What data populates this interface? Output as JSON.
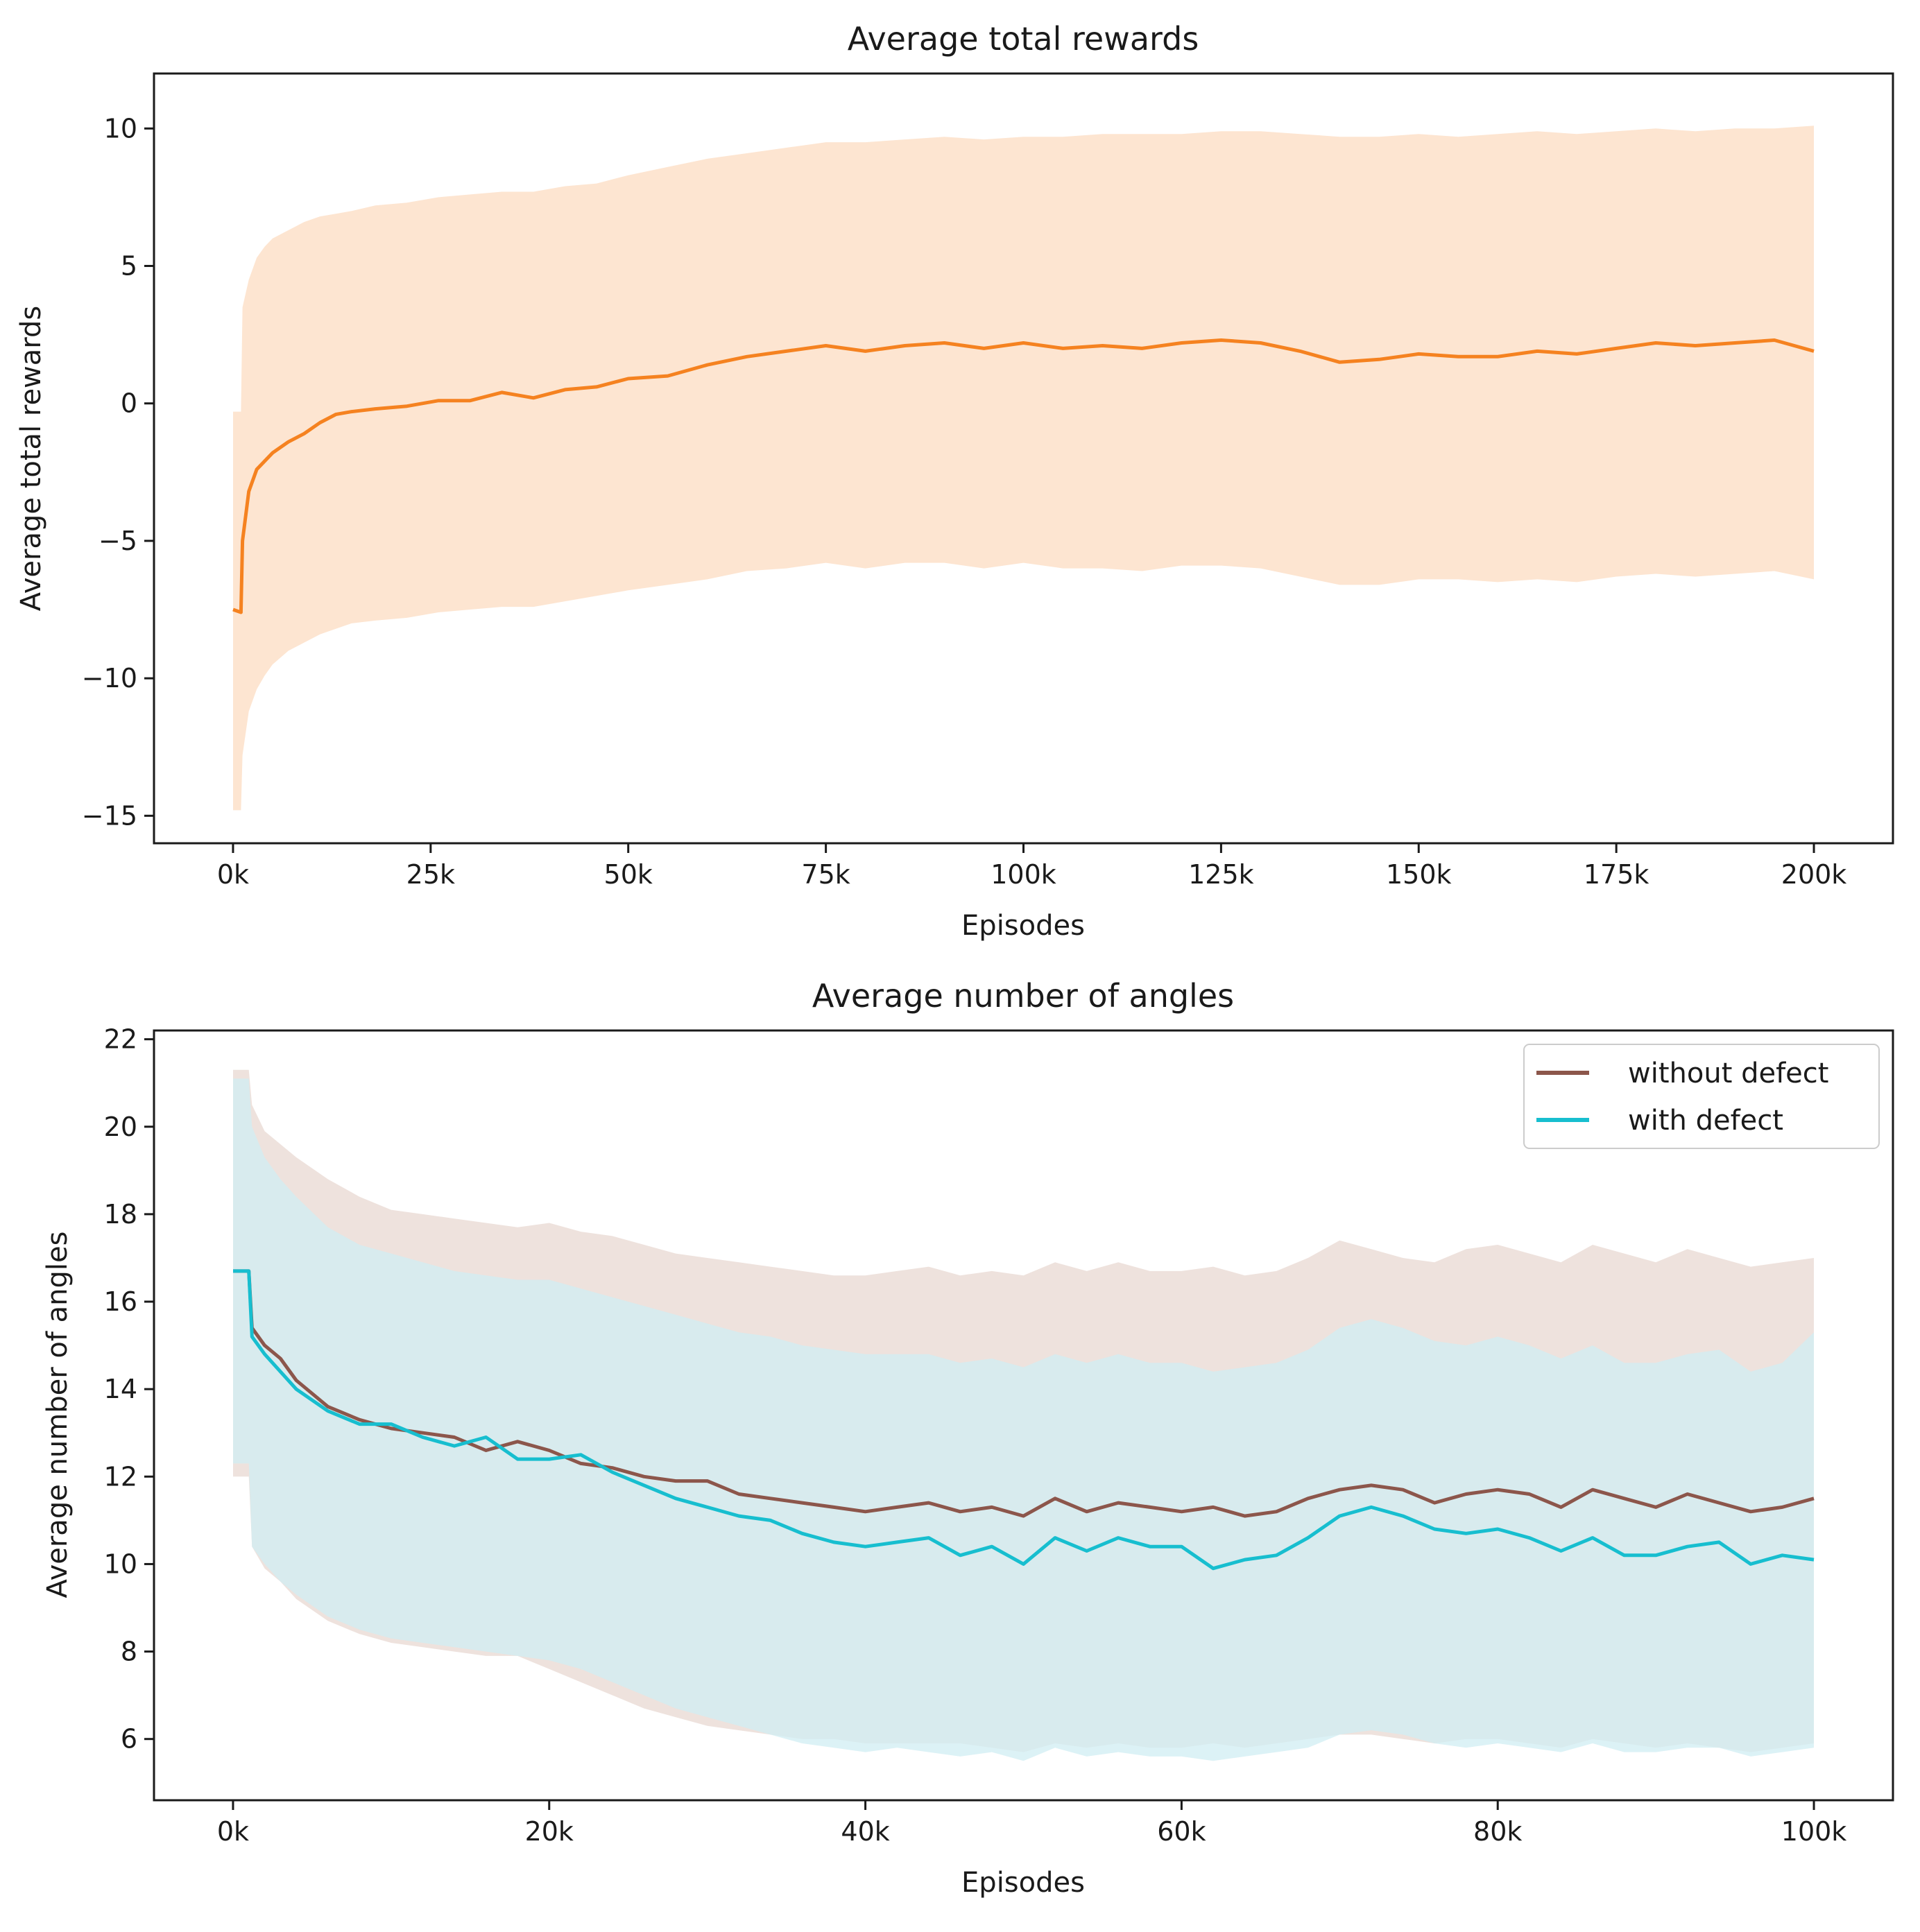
{
  "chart_data": [
    {
      "type": "line",
      "title": "Average total rewards",
      "xlabel": "Episodes",
      "ylabel": "Average total rewards",
      "xlim": [
        -10000,
        210000
      ],
      "ylim": [
        -16,
        12
      ],
      "xticks": [
        0,
        25000,
        50000,
        75000,
        100000,
        125000,
        150000,
        175000,
        200000
      ],
      "xtick_labels": [
        "0k",
        "25k",
        "50k",
        "75k",
        "100k",
        "125k",
        "150k",
        "175k",
        "200k"
      ],
      "yticks": [
        -15,
        -10,
        -5,
        0,
        5,
        10
      ],
      "ytick_labels": [
        "−15",
        "−10",
        "−5",
        "0",
        "5",
        "10"
      ],
      "grid": false,
      "series": [
        {
          "name": "Average total rewards",
          "color": "#f58220",
          "band_color": "#fde5d1",
          "x": [
            0,
            1000,
            1200,
            2000,
            3000,
            4000,
            5000,
            7000,
            9000,
            11000,
            13000,
            15000,
            18000,
            22000,
            26000,
            30000,
            34000,
            38000,
            42000,
            46000,
            50000,
            55000,
            60000,
            65000,
            70000,
            75000,
            80000,
            85000,
            90000,
            95000,
            100000,
            105000,
            110000,
            115000,
            120000,
            125000,
            130000,
            135000,
            140000,
            145000,
            150000,
            155000,
            160000,
            165000,
            170000,
            175000,
            180000,
            185000,
            190000,
            195000,
            200000
          ],
          "mean": [
            -7.5,
            -7.6,
            -5.0,
            -3.2,
            -2.4,
            -2.1,
            -1.8,
            -1.4,
            -1.1,
            -0.7,
            -0.4,
            -0.3,
            -0.2,
            -0.1,
            0.1,
            0.1,
            0.4,
            0.2,
            0.5,
            0.6,
            0.9,
            1.0,
            1.4,
            1.7,
            1.9,
            2.1,
            1.9,
            2.1,
            2.2,
            2.0,
            2.2,
            2.0,
            2.1,
            2.0,
            2.2,
            2.3,
            2.2,
            1.9,
            1.5,
            1.6,
            1.8,
            1.7,
            1.7,
            1.9,
            1.8,
            2.0,
            2.2,
            2.1,
            2.2,
            2.3,
            1.9
          ],
          "upper": [
            -0.3,
            -0.3,
            3.5,
            4.5,
            5.3,
            5.7,
            6.0,
            6.3,
            6.6,
            6.8,
            6.9,
            7.0,
            7.2,
            7.3,
            7.5,
            7.6,
            7.7,
            7.7,
            7.9,
            8.0,
            8.3,
            8.6,
            8.9,
            9.1,
            9.3,
            9.5,
            9.5,
            9.6,
            9.7,
            9.6,
            9.7,
            9.7,
            9.8,
            9.8,
            9.8,
            9.9,
            9.9,
            9.8,
            9.7,
            9.7,
            9.8,
            9.7,
            9.8,
            9.9,
            9.8,
            9.9,
            10.0,
            9.9,
            10.0,
            10.0,
            10.1
          ],
          "lower": [
            -14.8,
            -14.8,
            -12.8,
            -11.2,
            -10.4,
            -9.9,
            -9.5,
            -9.0,
            -8.7,
            -8.4,
            -8.2,
            -8.0,
            -7.9,
            -7.8,
            -7.6,
            -7.5,
            -7.4,
            -7.4,
            -7.2,
            -7.0,
            -6.8,
            -6.6,
            -6.4,
            -6.1,
            -6.0,
            -5.8,
            -6.0,
            -5.8,
            -5.8,
            -6.0,
            -5.8,
            -6.0,
            -6.0,
            -6.1,
            -5.9,
            -5.9,
            -6.0,
            -6.3,
            -6.6,
            -6.6,
            -6.4,
            -6.4,
            -6.5,
            -6.4,
            -6.5,
            -6.3,
            -6.2,
            -6.3,
            -6.2,
            -6.1,
            -6.4
          ]
        }
      ]
    },
    {
      "type": "line",
      "title": "Average number of angles",
      "xlabel": "Episodes",
      "ylabel": "Average number of angles",
      "xlim": [
        -5000,
        105000
      ],
      "ylim": [
        4.6,
        22.2
      ],
      "xticks": [
        0,
        20000,
        40000,
        60000,
        80000,
        100000
      ],
      "xtick_labels": [
        "0k",
        "20k",
        "40k",
        "60k",
        "80k",
        "100k"
      ],
      "yticks": [
        6,
        8,
        10,
        12,
        14,
        16,
        18,
        20,
        22
      ],
      "ytick_labels": [
        "6",
        "8",
        "10",
        "12",
        "14",
        "16",
        "18",
        "20",
        "22"
      ],
      "grid": false,
      "legend": "top-right",
      "series": [
        {
          "name": "without defect",
          "color": "#8c564b",
          "band_color": "#e8d8d2",
          "x": [
            0,
            1000,
            1200,
            2000,
            3000,
            4000,
            6000,
            8000,
            10000,
            12000,
            14000,
            16000,
            18000,
            20000,
            22000,
            24000,
            26000,
            28000,
            30000,
            32000,
            34000,
            36000,
            38000,
            40000,
            42000,
            44000,
            46000,
            48000,
            50000,
            52000,
            54000,
            56000,
            58000,
            60000,
            62000,
            64000,
            66000,
            68000,
            70000,
            72000,
            74000,
            76000,
            78000,
            80000,
            82000,
            84000,
            86000,
            88000,
            90000,
            92000,
            94000,
            96000,
            98000,
            100000
          ],
          "mean": [
            16.7,
            16.7,
            15.4,
            15.0,
            14.7,
            14.2,
            13.6,
            13.3,
            13.1,
            13.0,
            12.9,
            12.6,
            12.8,
            12.6,
            12.3,
            12.2,
            12.0,
            11.9,
            11.9,
            11.6,
            11.5,
            11.4,
            11.3,
            11.2,
            11.3,
            11.4,
            11.2,
            11.3,
            11.1,
            11.5,
            11.2,
            11.4,
            11.3,
            11.2,
            11.3,
            11.1,
            11.2,
            11.5,
            11.7,
            11.8,
            11.7,
            11.4,
            11.6,
            11.7,
            11.6,
            11.3,
            11.7,
            11.5,
            11.3,
            11.6,
            11.4,
            11.2,
            11.3,
            11.5
          ],
          "upper": [
            21.3,
            21.3,
            20.5,
            19.9,
            19.6,
            19.3,
            18.8,
            18.4,
            18.1,
            18.0,
            17.9,
            17.8,
            17.7,
            17.8,
            17.6,
            17.5,
            17.3,
            17.1,
            17.0,
            16.9,
            16.8,
            16.7,
            16.6,
            16.6,
            16.7,
            16.8,
            16.6,
            16.7,
            16.6,
            16.9,
            16.7,
            16.9,
            16.7,
            16.7,
            16.8,
            16.6,
            16.7,
            17.0,
            17.4,
            17.2,
            17.0,
            16.9,
            17.2,
            17.3,
            17.1,
            16.9,
            17.3,
            17.1,
            16.9,
            17.2,
            17.0,
            16.8,
            16.9,
            17.0
          ],
          "lower": [
            12.0,
            12.0,
            10.4,
            9.9,
            9.6,
            9.2,
            8.7,
            8.4,
            8.2,
            8.1,
            8.0,
            7.9,
            7.9,
            7.6,
            7.3,
            7.0,
            6.7,
            6.5,
            6.3,
            6.2,
            6.1,
            6.0,
            6.0,
            5.9,
            5.9,
            5.9,
            5.9,
            5.8,
            5.7,
            5.9,
            5.8,
            5.9,
            5.8,
            5.8,
            5.9,
            5.8,
            5.9,
            6.0,
            6.1,
            6.1,
            6.0,
            5.9,
            6.0,
            6.0,
            5.9,
            5.8,
            6.0,
            5.9,
            5.8,
            5.9,
            5.8,
            5.7,
            5.8,
            5.9
          ]
        },
        {
          "name": "with defect",
          "color": "#17becf",
          "band_color": "#d0eef3",
          "x": [
            0,
            1000,
            1200,
            2000,
            3000,
            4000,
            6000,
            8000,
            10000,
            12000,
            14000,
            16000,
            18000,
            20000,
            22000,
            24000,
            26000,
            28000,
            30000,
            32000,
            34000,
            36000,
            38000,
            40000,
            42000,
            44000,
            46000,
            48000,
            50000,
            52000,
            54000,
            56000,
            58000,
            60000,
            62000,
            64000,
            66000,
            68000,
            70000,
            72000,
            74000,
            76000,
            78000,
            80000,
            82000,
            84000,
            86000,
            88000,
            90000,
            92000,
            94000,
            96000,
            98000,
            100000
          ],
          "mean": [
            16.7,
            16.7,
            15.2,
            14.8,
            14.4,
            14.0,
            13.5,
            13.2,
            13.2,
            12.9,
            12.7,
            12.9,
            12.4,
            12.4,
            12.5,
            12.1,
            11.8,
            11.5,
            11.3,
            11.1,
            11.0,
            10.7,
            10.5,
            10.4,
            10.5,
            10.6,
            10.2,
            10.4,
            10.0,
            10.6,
            10.3,
            10.6,
            10.4,
            10.4,
            9.9,
            10.1,
            10.2,
            10.6,
            11.1,
            11.3,
            11.1,
            10.8,
            10.7,
            10.8,
            10.6,
            10.3,
            10.6,
            10.2,
            10.2,
            10.4,
            10.5,
            10.0,
            10.2,
            10.1
          ],
          "upper": [
            21.1,
            21.1,
            20.0,
            19.3,
            18.8,
            18.4,
            17.7,
            17.3,
            17.1,
            16.9,
            16.7,
            16.6,
            16.5,
            16.5,
            16.3,
            16.1,
            15.9,
            15.7,
            15.5,
            15.3,
            15.2,
            15.0,
            14.9,
            14.8,
            14.8,
            14.8,
            14.6,
            14.7,
            14.5,
            14.8,
            14.6,
            14.8,
            14.6,
            14.6,
            14.4,
            14.5,
            14.6,
            14.9,
            15.4,
            15.6,
            15.4,
            15.1,
            15.0,
            15.2,
            15.0,
            14.7,
            15.0,
            14.6,
            14.6,
            14.8,
            14.9,
            14.4,
            14.6,
            15.3
          ],
          "lower": [
            12.3,
            12.3,
            10.4,
            10.0,
            9.6,
            9.3,
            8.8,
            8.5,
            8.3,
            8.2,
            8.1,
            8.0,
            7.9,
            7.8,
            7.6,
            7.3,
            7.0,
            6.7,
            6.5,
            6.3,
            6.1,
            5.9,
            5.8,
            5.7,
            5.8,
            5.7,
            5.6,
            5.7,
            5.5,
            5.8,
            5.6,
            5.7,
            5.6,
            5.6,
            5.5,
            5.6,
            5.7,
            5.8,
            6.1,
            6.2,
            6.1,
            5.9,
            5.8,
            5.9,
            5.8,
            5.7,
            5.9,
            5.7,
            5.7,
            5.8,
            5.8,
            5.6,
            5.7,
            5.8
          ]
        }
      ]
    }
  ]
}
